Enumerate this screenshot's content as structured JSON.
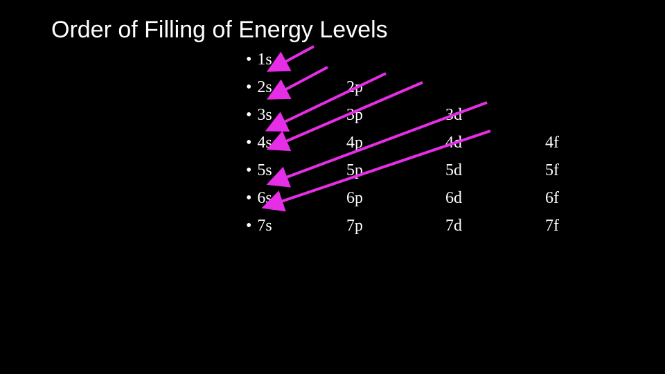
{
  "slide": {
    "title": "Order of Filling of Energy Levels",
    "bullet": "•",
    "columns": {
      "s": [
        "1s",
        "2s",
        "3s",
        "4s",
        "5s",
        "6s",
        "7s"
      ],
      "p": [
        "2p",
        "3p",
        "4p",
        "5p",
        "6p",
        "7p"
      ],
      "d": [
        "3d",
        "4d",
        "5d",
        "6d",
        "7d"
      ],
      "f": [
        "4f",
        "5f",
        "6f",
        "7f"
      ]
    },
    "arrow_color": "#e52ee5",
    "background_color": "#000000",
    "text_color": "#ffffff"
  }
}
